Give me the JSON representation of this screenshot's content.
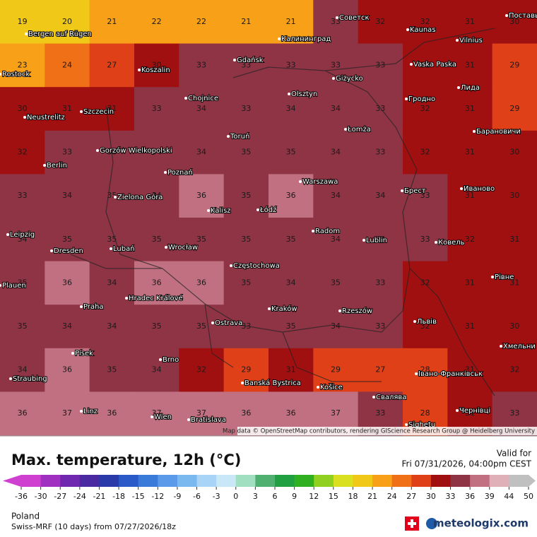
{
  "map": {
    "temperature_grid": [
      [
        19,
        20,
        21,
        22,
        22,
        21,
        21,
        33,
        32,
        32,
        31,
        30
      ],
      [
        23,
        24,
        27,
        30,
        33,
        33,
        33,
        33,
        33,
        32,
        31,
        29
      ],
      [
        30,
        31,
        31,
        33,
        34,
        33,
        34,
        34,
        33,
        32,
        31,
        29
      ],
      [
        32,
        33,
        33,
        34,
        34,
        35,
        35,
        34,
        33,
        32,
        31,
        30
      ],
      [
        33,
        34,
        35,
        34,
        36,
        35,
        36,
        34,
        34,
        33,
        31,
        30
      ],
      [
        34,
        35,
        35,
        35,
        35,
        35,
        35,
        34,
        34,
        33,
        32,
        31
      ],
      [
        35,
        36,
        34,
        36,
        36,
        35,
        34,
        35,
        33,
        32,
        31,
        31
      ],
      [
        35,
        34,
        34,
        35,
        35,
        33,
        35,
        34,
        33,
        32,
        31,
        30
      ],
      [
        34,
        36,
        35,
        34,
        32,
        29,
        31,
        29,
        27,
        28,
        31,
        32
      ],
      [
        36,
        37,
        36,
        37,
        37,
        36,
        36,
        37,
        33,
        28,
        31,
        33
      ]
    ],
    "cities": [
      "Советск",
      "Kaunas",
      "Vilnius",
      "Поставы",
      "Bergen auf Rügen",
      "Калининград",
      "Gdańsk",
      "Koszalin",
      "Rostock",
      "Vaska Paska",
      "Giżycko",
      "Лида",
      "Olsztyn",
      "Гродно",
      "Chojnice",
      "Szczecin",
      "Neustrelitz",
      "Łomża",
      "Барановичи",
      "Toruń",
      "Gorzów Wielkopolski",
      "Berlin",
      "Poznań",
      "Warszawa",
      "Брест",
      "Иваново",
      "Zielona Góra",
      "Kalisz",
      "Łódź",
      "Radom",
      "Leipzig",
      "Lublin",
      "Ковель",
      "Dresden",
      "Lubań",
      "Wrocław",
      "Częstochowa",
      "Plauen",
      "Рівне",
      "Hradec Králové",
      "Praha",
      "Kraków",
      "Rzeszów",
      "Львів",
      "Ostrava",
      "Хмельни",
      "Písek",
      "Brno",
      "Banská Bystrica",
      "Košice",
      "Івано-Франківськ",
      "Straubing",
      "Свалява",
      "Linz",
      "Wien",
      "Bratislava",
      "Чернівці",
      "Sighetu"
    ],
    "attribution": "Map data © OpenStreetMap contributors, rendering GIScience Research Group @ Heidelberg University"
  },
  "legend": {
    "title": "Max. temperature, 12h (°C)",
    "valid_for": "Valid for",
    "valid_time": "Fri 07/31/2026, 04:00pm CEST",
    "ticks": [
      -36,
      -30,
      -27,
      -24,
      -21,
      -18,
      -15,
      -12,
      -9,
      -6,
      -3,
      0,
      3,
      6,
      9,
      12,
      15,
      18,
      21,
      24,
      27,
      30,
      33,
      36,
      39,
      44,
      50
    ],
    "colors": [
      "#d040d0",
      "#a030c0",
      "#7028b0",
      "#4a2aa0",
      "#2a3aa8",
      "#2a5ac8",
      "#3a7ad8",
      "#5a9ae8",
      "#7ab8f0",
      "#a8d4f8",
      "#c8e8f8",
      "#a0e0c0",
      "#50b070",
      "#20a040",
      "#30b020",
      "#90d020",
      "#d8e020",
      "#f0c818",
      "#f8a018",
      "#f07018",
      "#e04018",
      "#a01010",
      "#8e3445",
      "#c07080",
      "#e0b0b8",
      "#c0c0c0"
    ],
    "region": "Poland",
    "model": "Swiss-MRF (10 days) from 07/27/2026/18z",
    "brand": "meteologix.com"
  }
}
